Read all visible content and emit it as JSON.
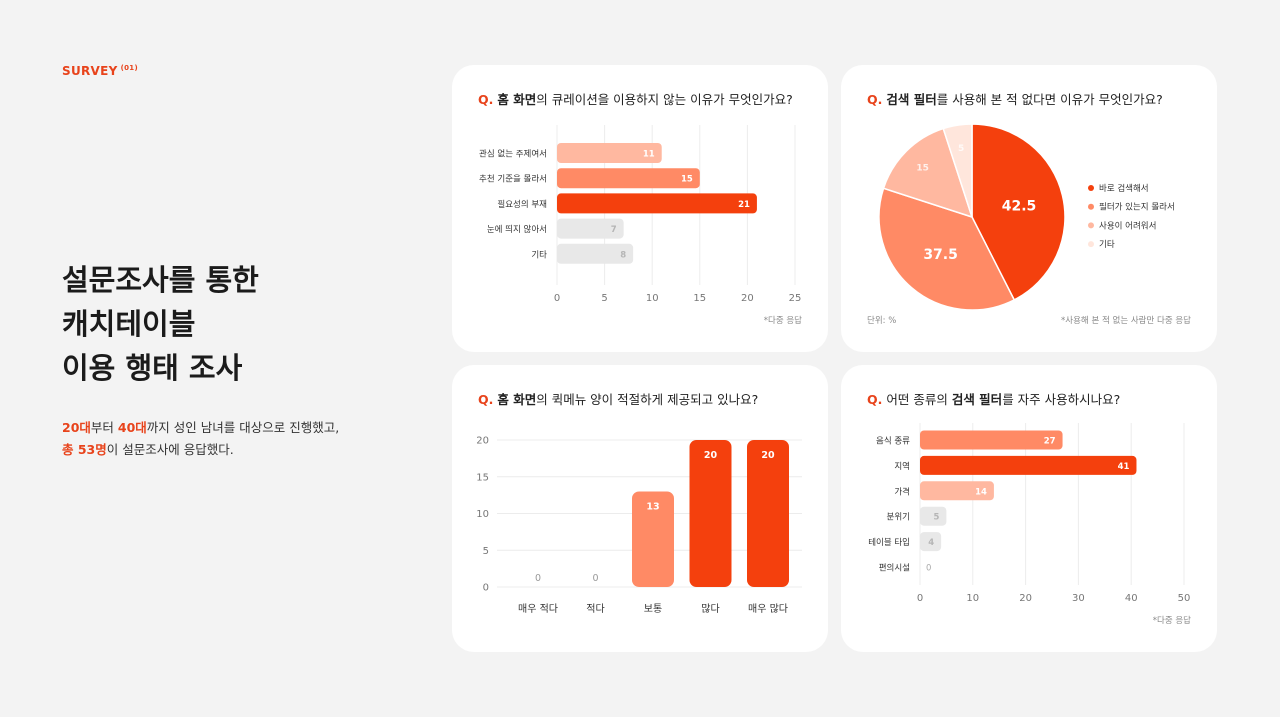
{
  "header": {
    "survey_label": "SURVEY",
    "survey_index": "(01)",
    "title_lines": [
      "설문조사를 통한",
      "캐치테이블",
      "이용 행태 조사"
    ],
    "desc_line1": {
      "a": "20대",
      "b": "부터 ",
      "c": "40대",
      "d": "까지 성인 남녀를 대상으로 진행했고,"
    },
    "desc_line2": {
      "a": "총 53명",
      "b": "이 설문조사에 응답했다."
    }
  },
  "colors": {
    "accent": "#f4400d",
    "mid": "#ff8a65",
    "light": "#ffb8a0",
    "pale": "#ffe6dc",
    "gray": "#e8e8e8"
  },
  "cards": {
    "q1": {
      "prefix": "Q.",
      "bold": "홈 화면",
      "rest": "의 큐레이션을 이용하지 않는 이유가 무엇인가요?",
      "note": "*다중 응답"
    },
    "q2": {
      "prefix": "Q.",
      "bold": "검색 필터",
      "rest": "를 사용해 본 적 없다면 이유가 무엇인가요?",
      "unit": "단위: %",
      "note": "*사용해 본 적 없는 사람만 다중 응답"
    },
    "q3": {
      "prefix": "Q.",
      "bold": "홈 화면",
      "rest": "의 퀵메뉴 양이 적절하게 제공되고 있나요?"
    },
    "q4": {
      "prefix": "Q.",
      "pre": "어떤 종류의 ",
      "bold": "검색 필터",
      "rest": "를 자주 사용하시나요?",
      "note": "*다중 응답"
    }
  },
  "chart_data": [
    {
      "type": "bar",
      "orientation": "horizontal",
      "categories": [
        "관심 없는 주제여서",
        "추천 기준을 몰라서",
        "필요성의 부재",
        "눈에 띄지 않아서",
        "기타"
      ],
      "values": [
        11,
        15,
        21,
        7,
        8
      ],
      "bar_colors": [
        "light",
        "mid",
        "accent",
        "gray",
        "gray"
      ],
      "xticks": [
        0,
        5,
        10,
        15,
        20,
        25
      ],
      "xlim": [
        0,
        25
      ],
      "grid": true
    },
    {
      "type": "pie",
      "labels": [
        "바로 검색해서",
        "필터가 있는지 몰라서",
        "사용이 어려워서",
        "기타"
      ],
      "values": [
        42.5,
        37.5,
        15,
        5
      ],
      "slice_colors": [
        "accent",
        "mid",
        "light",
        "pale"
      ],
      "legend": "right"
    },
    {
      "type": "bar",
      "orientation": "vertical",
      "categories": [
        "매우 적다",
        "적다",
        "보통",
        "많다",
        "매우 많다"
      ],
      "values": [
        0,
        0,
        13,
        20,
        20
      ],
      "bar_colors": [
        "gray",
        "gray",
        "mid",
        "accent",
        "accent"
      ],
      "yticks": [
        0,
        5,
        10,
        15,
        20
      ],
      "ylim": [
        0,
        20
      ],
      "grid": true
    },
    {
      "type": "bar",
      "orientation": "horizontal",
      "categories": [
        "음식 종류",
        "지역",
        "가격",
        "분위기",
        "테이블 타입",
        "편의시설"
      ],
      "values": [
        27,
        41,
        14,
        5,
        4,
        0
      ],
      "bar_colors": [
        "mid",
        "accent",
        "light",
        "gray",
        "gray",
        "gray"
      ],
      "xticks": [
        0,
        10,
        20,
        30,
        40,
        50
      ],
      "xlim": [
        0,
        50
      ],
      "grid": true
    }
  ]
}
